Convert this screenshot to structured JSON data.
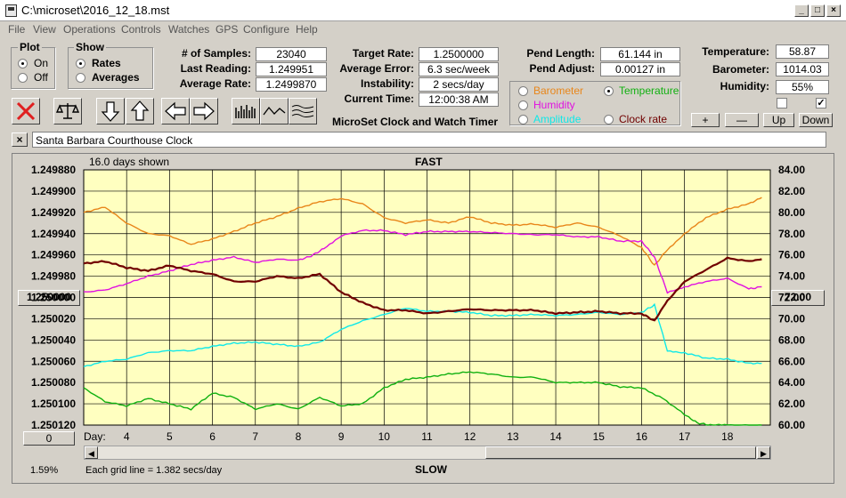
{
  "window": {
    "title": "C:\\microset\\2016_12_18.mst",
    "minimize": "_",
    "maximize": "□",
    "close": "×"
  },
  "menu": [
    "File",
    "View",
    "Operations",
    "Controls",
    "Watches",
    "GPS",
    "Configure",
    "Help"
  ],
  "plot": {
    "label": "Plot",
    "on": "On",
    "off": "Off",
    "selected": "On"
  },
  "show": {
    "label": "Show",
    "rates": "Rates",
    "averages": "Averages",
    "selected": "Rates"
  },
  "stats": {
    "samples_label": "# of Samples:",
    "samples": "23040",
    "last_label": "Last Reading:",
    "last": "1.249951",
    "avg_label": "Average Rate:",
    "avg": "1.2499870",
    "target_label": "Target Rate:",
    "target": "1.2500000",
    "avgerr_label": "Average Error:",
    "avgerr": "6.3 sec/week",
    "instab_label": "Instability:",
    "instab": "2 secs/day",
    "time_label": "Current Time:",
    "time": "12:00:38 AM",
    "pendlen_label": "Pend Length:",
    "pendlen": "61.144 in",
    "pendadj_label": "Pend Adjust:",
    "pendadj": "0.00127 in",
    "temp_label": "Temperature:",
    "temp": "58.87",
    "baro_label": "Barometer:",
    "baro": "1014.03",
    "hum_label": "Humidity:",
    "hum": "55%"
  },
  "app_subtitle": "MicroSet Clock and Watch Timer",
  "sensors": {
    "barometer": "Barometer",
    "temperature": "Temperature",
    "humidity": "Humidity",
    "amplitude": "Amplitude",
    "clockrate": "Clock rate",
    "selected": "Temperature"
  },
  "adjust_buttons": {
    "plus": "+",
    "minus": "—",
    "up": "Up",
    "down": "Down"
  },
  "clock_name": "Santa Barbara Courthouse Clock",
  "clear_label": "×",
  "colors": {
    "barometer": "#e8861a",
    "temperature": "#10b010",
    "humidity": "#e010e0",
    "amplitude": "#10e8e8",
    "rate": "#700000",
    "plot_bg": "#ffffc0"
  },
  "chart": {
    "days_shown": "16.0 days shown",
    "fast": "FAST",
    "slow": "SLOW",
    "grid_note": "Each grid line = 1.382 secs/day",
    "left_pct": "1.59%",
    "center_left": "1.250000",
    "center_right": "72.00",
    "offset_btn": "0",
    "day_label": "Day:"
  },
  "chart_data": {
    "type": "line",
    "xlim": [
      3,
      19
    ],
    "x_ticks": [
      "4",
      "5",
      "6",
      "7",
      "8",
      "9",
      "10",
      "11",
      "12",
      "13",
      "14",
      "15",
      "16",
      "17",
      "18"
    ],
    "y_left_ticks": [
      "1.249880",
      "1.249900",
      "1.249920",
      "1.249940",
      "1.249960",
      "1.249980",
      "1.250000",
      "1.250020",
      "1.250040",
      "1.250060",
      "1.250080",
      "1.250100",
      "1.250120"
    ],
    "y_left_lim": [
      1.24988,
      1.25012
    ],
    "y_right_ticks": [
      "84.00",
      "82.00",
      "80.00",
      "78.00",
      "76.00",
      "74.00",
      "72.00",
      "70.00",
      "68.00",
      "66.00",
      "64.00",
      "62.00",
      "60.00"
    ],
    "y_right_lim": [
      60,
      84
    ],
    "series": [
      {
        "name": "Barometer",
        "color": "#e8861a",
        "axis": "right",
        "x": [
          3,
          3.5,
          4,
          4.5,
          5,
          5.5,
          6,
          6.5,
          7,
          7.5,
          8,
          8.5,
          9,
          9.5,
          10,
          10.5,
          11,
          11.5,
          12,
          12.5,
          13,
          13.5,
          14,
          14.5,
          15,
          15.5,
          16,
          16.3,
          16.6,
          17,
          17.5,
          18,
          18.5,
          18.8
        ],
        "y": [
          80,
          80.5,
          79,
          78,
          77.8,
          77,
          77.5,
          78.2,
          79,
          79.6,
          80.4,
          81,
          81.3,
          80.8,
          79.5,
          79,
          79.3,
          79,
          79.6,
          79,
          78.8,
          78.9,
          78.6,
          79,
          78.6,
          77.8,
          76.7,
          75,
          76.5,
          78,
          79.5,
          80.3,
          80.8,
          81.4
        ]
      },
      {
        "name": "Humidity",
        "color": "#e010e0",
        "axis": "right",
        "x": [
          3,
          3.5,
          4,
          4.5,
          5,
          5.5,
          6,
          6.5,
          7,
          7.5,
          8,
          8.3,
          8.6,
          9,
          9.5,
          10,
          10.5,
          11,
          11.5,
          12,
          12.5,
          13,
          13.5,
          14,
          14.5,
          15,
          15.5,
          16,
          16.3,
          16.6,
          17,
          17.5,
          18,
          18.5,
          18.8
        ],
        "y": [
          72.5,
          72.7,
          73.3,
          74,
          74.5,
          75.1,
          75.5,
          75.8,
          75.3,
          75.6,
          75.5,
          75.9,
          76.6,
          77.8,
          78.3,
          78.3,
          77.9,
          78.2,
          78.2,
          78.2,
          78.1,
          78,
          77.9,
          77.9,
          77.7,
          77.7,
          77.3,
          77.3,
          75.8,
          72.5,
          73,
          73.5,
          73.8,
          72.8,
          73
        ]
      },
      {
        "name": "Amplitude",
        "color": "#10e8e8",
        "axis": "right",
        "x": [
          3,
          3.5,
          4,
          4.5,
          5,
          5.5,
          6,
          6.5,
          7,
          7.5,
          8,
          8.5,
          9,
          9.5,
          10,
          10.5,
          11,
          11.5,
          12,
          12.5,
          13,
          13.5,
          14,
          14.5,
          15,
          15.5,
          16,
          16.3,
          16.6,
          17,
          17.5,
          18,
          18.5,
          18.8
        ],
        "y": [
          65.5,
          66,
          66.2,
          66.8,
          67,
          67,
          67.4,
          67.7,
          67.8,
          67.6,
          67.4,
          67.8,
          69,
          69.8,
          70.4,
          71,
          70.7,
          70.7,
          70.6,
          70.3,
          70.3,
          70.4,
          70.3,
          70.4,
          70.6,
          70.4,
          70.6,
          71.3,
          67,
          66.8,
          66.3,
          66.2,
          65.8,
          65.8
        ]
      },
      {
        "name": "Temperature",
        "color": "#10b010",
        "axis": "right",
        "x": [
          3,
          3.5,
          4,
          4.5,
          5,
          5.5,
          6,
          6.5,
          7,
          7.5,
          8,
          8.5,
          9,
          9.5,
          10,
          10.5,
          11,
          11.5,
          12,
          12.5,
          13,
          13.5,
          14,
          14.5,
          15,
          15.5,
          16,
          16.5,
          17,
          17.3,
          17.6,
          18,
          18.5,
          18.8
        ],
        "y": [
          63.5,
          62.2,
          61.8,
          62.5,
          62,
          61.5,
          63,
          62.6,
          61.5,
          62,
          61.5,
          62.6,
          61.8,
          62,
          63.5,
          64.3,
          64.5,
          64.8,
          65,
          64.8,
          64.5,
          64.5,
          64,
          64,
          64,
          63.6,
          63.5,
          62.5,
          61,
          60.2,
          60,
          60,
          60,
          60
        ]
      },
      {
        "name": "Rate",
        "color": "#700000",
        "axis": "left",
        "x": [
          3,
          3.5,
          4,
          4.5,
          5,
          5.5,
          6,
          6.5,
          7,
          7.5,
          8,
          8.5,
          9,
          9.5,
          10,
          10.5,
          11,
          11.5,
          12,
          12.5,
          13,
          13.5,
          14,
          14.5,
          15,
          15.5,
          16,
          16.3,
          16.6,
          17,
          17.5,
          18,
          18.5,
          18.8
        ],
        "y": [
          1.249968,
          1.249966,
          1.249972,
          1.249975,
          1.24997,
          1.249975,
          1.249978,
          1.249985,
          1.249985,
          1.24998,
          1.249982,
          1.249978,
          1.249995,
          1.250005,
          1.250012,
          1.250012,
          1.250015,
          1.250013,
          1.250011,
          1.250012,
          1.250012,
          1.250012,
          1.250015,
          1.250014,
          1.250013,
          1.250015,
          1.250015,
          1.250022,
          1.250003,
          1.249985,
          1.249974,
          1.249963,
          1.249966,
          1.249964
        ]
      }
    ]
  }
}
